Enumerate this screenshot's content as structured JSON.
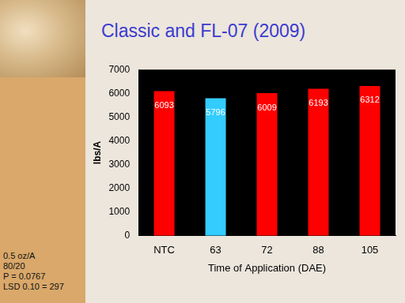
{
  "chart_data": {
    "type": "bar",
    "title": "Classic and FL-07 (2009)",
    "categories": [
      "NTC",
      "63",
      "72",
      "88",
      "105"
    ],
    "values": [
      6093,
      5796,
      6009,
      6193,
      6312
    ],
    "colors": [
      "#ff0000",
      "#33ccff",
      "#ff0000",
      "#ff0000",
      "#ff0000"
    ],
    "ylim": [
      0,
      7000
    ],
    "yticks": [
      0,
      1000,
      2000,
      3000,
      4000,
      5000,
      6000,
      7000
    ],
    "x_label": "Time of Application (DAE)",
    "y_label": "lbs/A",
    "data_labels": true,
    "grid": false,
    "annotations": [
      "0.5 oz/A",
      "80/20",
      "P = 0.0767",
      "LSD 0.10 = 297"
    ]
  }
}
